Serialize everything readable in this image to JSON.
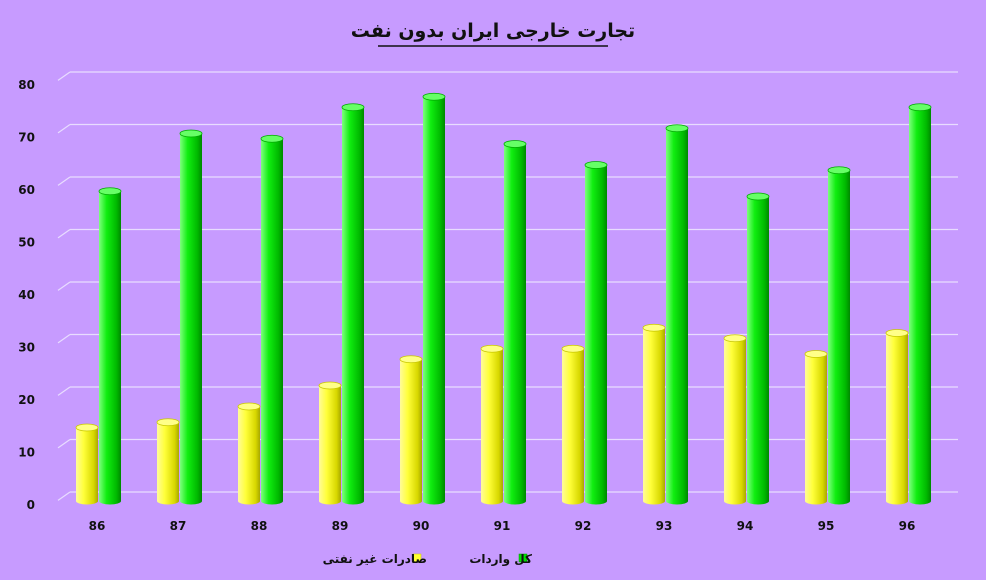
{
  "chart_data": {
    "type": "bar",
    "title": "تجارت خارجی ایران بدون نفت",
    "categories": [
      "86",
      "87",
      "88",
      "89",
      "90",
      "91",
      "92",
      "93",
      "94",
      "95",
      "96"
    ],
    "series": [
      {
        "name": "صادرات غیر نفتی",
        "color": "#ffff33",
        "values": [
          14,
          15,
          18,
          22,
          27,
          29,
          29,
          33,
          31,
          28,
          32
        ]
      },
      {
        "name": "کل واردات",
        "color": "#00dd00",
        "values": [
          59,
          70,
          69,
          75,
          77,
          68,
          64,
          71,
          58,
          63,
          75
        ]
      }
    ],
    "ylim": [
      0,
      80
    ],
    "yticks": [
      0,
      10,
      20,
      30,
      40,
      50,
      60,
      70,
      80
    ],
    "grid": true,
    "legend_position": "bottom-center",
    "background_color": "#c79bff",
    "gridline_color": "#e8dcff"
  }
}
